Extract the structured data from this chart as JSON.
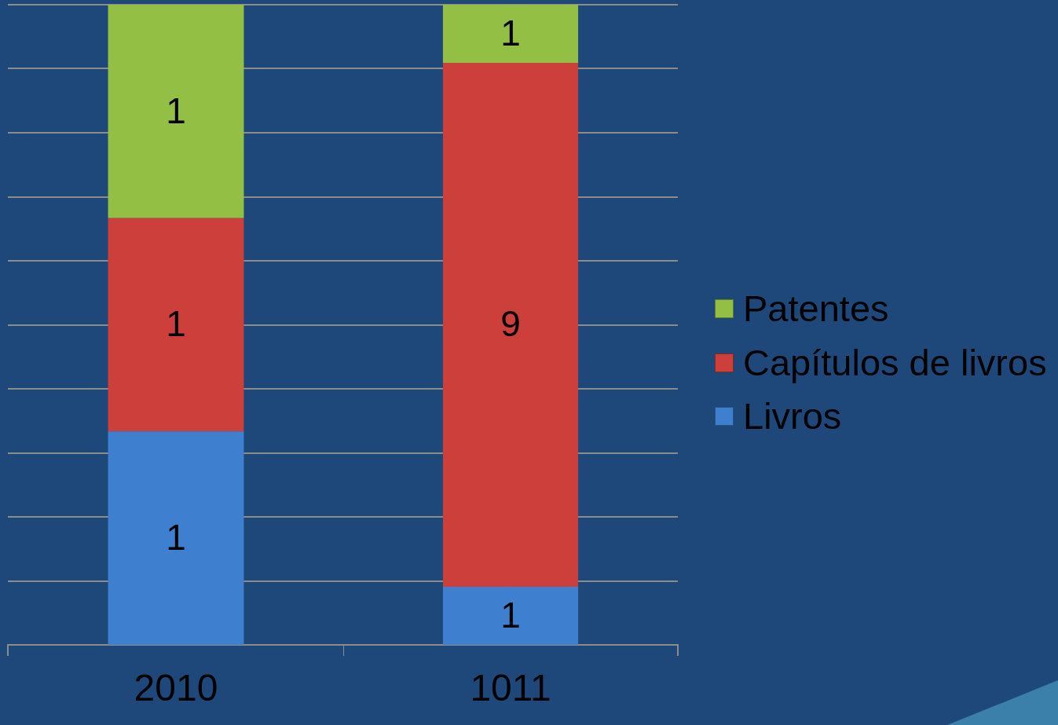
{
  "chart_data": [
    {
      "type": "bar",
      "categories": [
        "2010"
      ],
      "stacked": true,
      "data_labels": true,
      "grid": "y",
      "tick_labels": "x",
      "series": [
        {
          "color": "#3e80cf",
          "values": [
            1
          ]
        },
        {
          "color": "#cc3f3a",
          "values": [
            1
          ]
        },
        {
          "color": "#93bf45",
          "values": [
            1
          ]
        }
      ]
    },
    {
      "type": "bar",
      "categories": [
        "1011"
      ],
      "stacked": true,
      "data_labels": true,
      "grid": "y",
      "tick_labels": "x",
      "legend": "right",
      "series": [
        {
          "name": "Livros",
          "color": "#3e80cf",
          "values": [
            1
          ]
        },
        {
          "name": "Capítulos de livros",
          "color": "#cc3f3a",
          "values": [
            9
          ]
        },
        {
          "name": "Patentes",
          "color": "#93bf45",
          "values": [
            1
          ]
        }
      ]
    }
  ]
}
